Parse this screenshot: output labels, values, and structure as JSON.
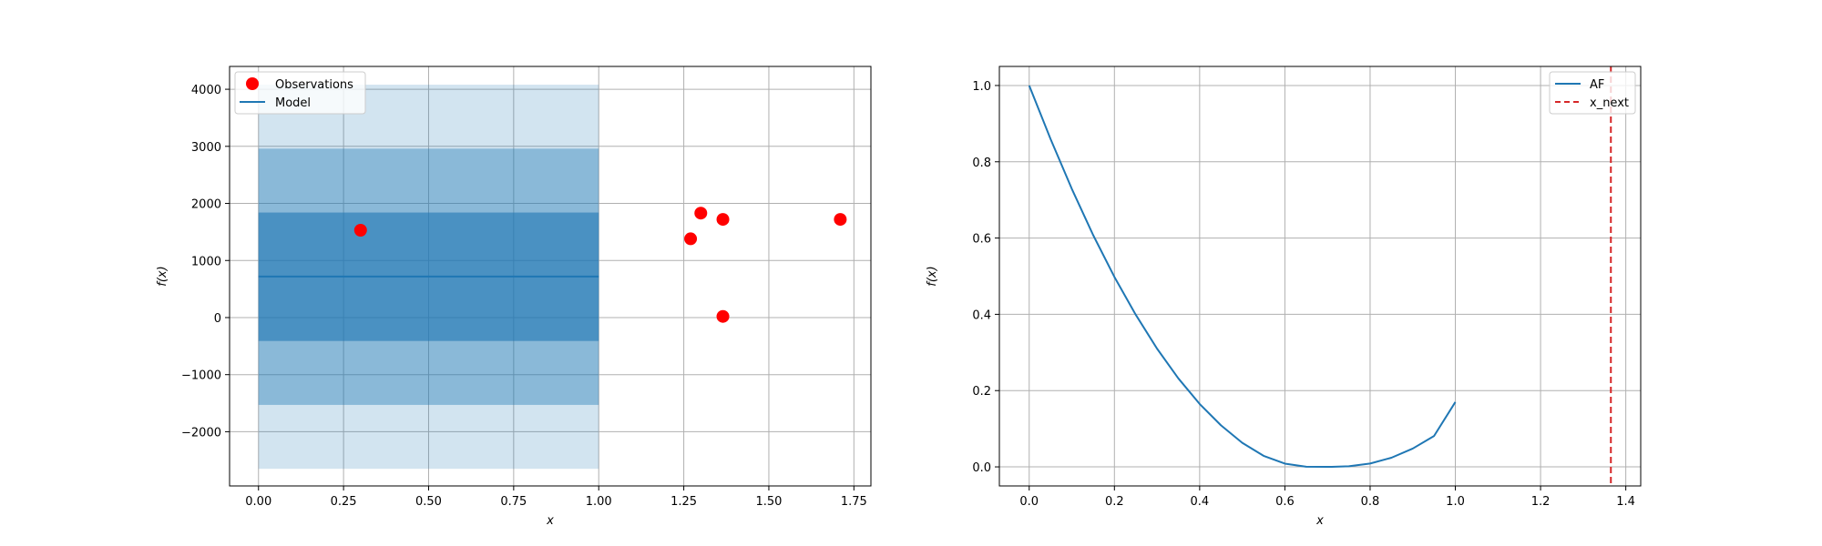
{
  "chart_data": [
    {
      "type": "line",
      "xlabel": "x",
      "ylabel": "f(x)",
      "xlim": [
        -0.085,
        1.8
      ],
      "ylim": [
        -2950,
        4400
      ],
      "xticks": [
        0.0,
        0.25,
        0.5,
        0.75,
        1.0,
        1.25,
        1.5,
        1.75
      ],
      "xtick_labels": [
        "0.00",
        "0.25",
        "0.50",
        "0.75",
        "1.00",
        "1.25",
        "1.50",
        "1.75"
      ],
      "yticks": [
        -2000,
        -1000,
        0,
        1000,
        2000,
        3000,
        4000
      ],
      "ytick_labels": [
        "−2000",
        "−1000",
        "0",
        "1000",
        "2000",
        "3000",
        "4000"
      ],
      "grid": true,
      "legend_position": "top-left",
      "legend": [
        "Observations",
        "Model"
      ],
      "observations": {
        "name": "Observations",
        "color": "#ff0000",
        "x": [
          0.3,
          1.27,
          1.3,
          1.365,
          1.365,
          1.71
        ],
        "y": [
          1530,
          1380,
          1830,
          1720,
          20,
          1720
        ]
      },
      "model": {
        "name": "Model",
        "color": "#1f77b4",
        "x": [
          0.0,
          1.0
        ],
        "y": [
          720,
          720
        ]
      },
      "confidence_bands": [
        {
          "lower": -2650,
          "upper": 4080,
          "opacity": 0.2
        },
        {
          "lower": -1530,
          "upper": 2960,
          "opacity": 0.4
        },
        {
          "lower": -410,
          "upper": 1840,
          "opacity": 0.6
        }
      ]
    },
    {
      "type": "line",
      "xlabel": "x",
      "ylabel": "f(x)",
      "xlim": [
        -0.07,
        1.435
      ],
      "ylim": [
        -0.05,
        1.05
      ],
      "xticks": [
        0.0,
        0.2,
        0.4,
        0.6,
        0.8,
        1.0,
        1.2,
        1.4
      ],
      "xtick_labels": [
        "0.0",
        "0.2",
        "0.4",
        "0.6",
        "0.8",
        "1.0",
        "1.2",
        "1.4"
      ],
      "yticks": [
        0.0,
        0.2,
        0.4,
        0.6,
        0.8,
        1.0
      ],
      "ytick_labels": [
        "0.0",
        "0.2",
        "0.4",
        "0.6",
        "0.8",
        "1.0"
      ],
      "grid": true,
      "legend_position": "top-right",
      "legend": [
        "AF",
        "x_next"
      ],
      "series": [
        {
          "name": "AF",
          "color": "#1f77b4",
          "x": [
            0.0,
            0.05,
            0.1,
            0.15,
            0.2,
            0.25,
            0.3,
            0.35,
            0.4,
            0.45,
            0.5,
            0.55,
            0.6,
            0.65,
            0.7,
            0.71,
            0.75,
            0.8,
            0.85,
            0.9,
            0.95,
            1.0
          ],
          "y": [
            1.0,
            0.86,
            0.729,
            0.608,
            0.498,
            0.399,
            0.31,
            0.232,
            0.165,
            0.109,
            0.063,
            0.029,
            0.0085,
            0.0004,
            0.0001,
            0.0,
            0.0016,
            0.0087,
            0.024,
            0.048,
            0.081,
            0.17
          ]
        }
      ],
      "vline": {
        "name": "x_next",
        "x": 1.365,
        "color": "#d62728"
      }
    }
  ]
}
